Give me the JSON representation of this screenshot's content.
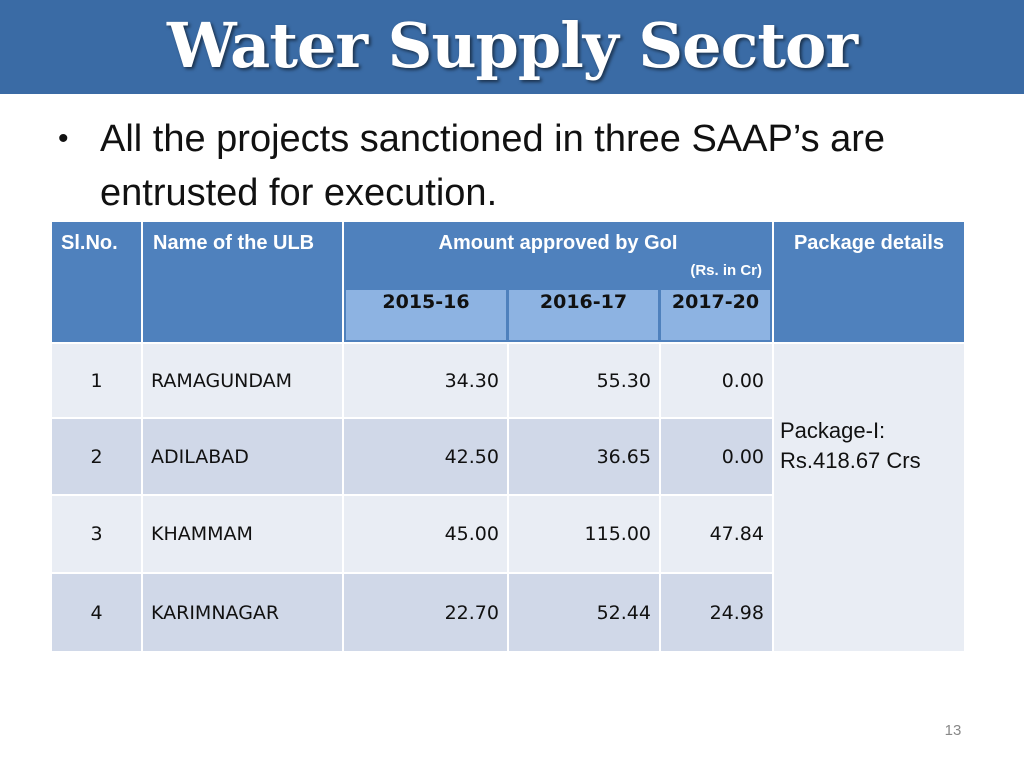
{
  "header": {
    "title": "Water Supply Sector"
  },
  "bullet": {
    "symbol": "•",
    "text": "All the projects sanctioned in three SAAP’s are entrusted for execution."
  },
  "table": {
    "headers": {
      "slno": "Sl.No.",
      "ulb": "Name of the ULB",
      "amount": "Amount approved by GoI",
      "amount_unit": "(Rs. in Cr)",
      "package": "Package details"
    },
    "years": [
      "2015-16",
      "2016-17",
      "2017-20"
    ],
    "rows": [
      {
        "slno": "1",
        "ulb": "RAMAGUNDAM",
        "v1": "34.30",
        "v2": "55.30",
        "v3": "0.00"
      },
      {
        "slno": "2",
        "ulb": "ADILABAD",
        "v1": "42.50",
        "v2": "36.65",
        "v3": "0.00"
      },
      {
        "slno": "3",
        "ulb": "KHAMMAM",
        "v1": "45.00",
        "v2": "115.00",
        "v3": "47.84"
      },
      {
        "slno": "4",
        "ulb": "KARIMNAGAR",
        "v1": "22.70",
        "v2": "52.44",
        "v3": "24.98"
      }
    ],
    "package": {
      "line1": "Package-I:",
      "line2": "Rs.418.67 Crs"
    }
  },
  "footer": {
    "page_number": "13"
  },
  "colors": {
    "title_bar": "#3a6ba5",
    "header": "#4f81bd",
    "subheader": "#8db3e2",
    "row_light": "#e9edf4",
    "row_dark": "#d0d8e8"
  }
}
